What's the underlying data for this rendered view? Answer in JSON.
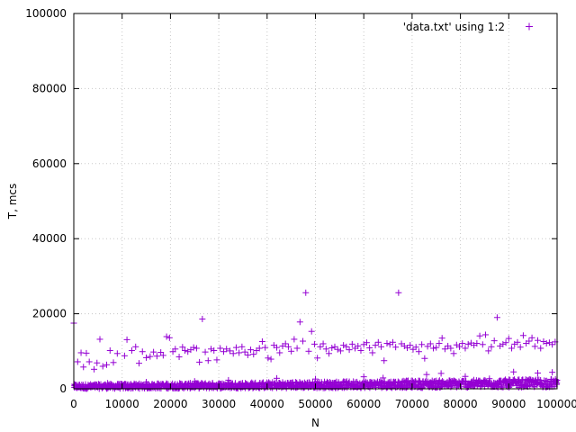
{
  "chart_data": {
    "type": "scatter",
    "title": "",
    "xlabel": "N",
    "ylabel": "T, mcs",
    "xlim": [
      0,
      100000
    ],
    "ylim": [
      0,
      100000
    ],
    "x_ticks": [
      "0",
      "10000",
      "20000",
      "30000",
      "40000",
      "50000",
      "60000",
      "70000",
      "80000",
      "90000",
      "100000"
    ],
    "y_ticks": [
      "0",
      "20000",
      "40000",
      "60000",
      "80000",
      "100000"
    ],
    "grid": true,
    "legend_position": "top-right",
    "marker": "+",
    "color": "#9400d3",
    "series": [
      {
        "name": "'data.txt' using 1:2",
        "upper_band_points": [
          [
            0,
            17500
          ],
          [
            800,
            7200
          ],
          [
            1500,
            9600
          ],
          [
            2000,
            5800
          ],
          [
            2600,
            9500
          ],
          [
            3200,
            7200
          ],
          [
            4200,
            5200
          ],
          [
            4800,
            6900
          ],
          [
            5400,
            13200
          ],
          [
            6000,
            6000
          ],
          [
            6800,
            6400
          ],
          [
            7500,
            10200
          ],
          [
            8200,
            7000
          ],
          [
            9000,
            9400
          ],
          [
            10500,
            8800
          ],
          [
            11000,
            13100
          ],
          [
            12000,
            10200
          ],
          [
            12800,
            11200
          ],
          [
            13500,
            6800
          ],
          [
            14200,
            9900
          ],
          [
            15000,
            8300
          ],
          [
            15800,
            8600
          ],
          [
            16500,
            9800
          ],
          [
            17200,
            8700
          ],
          [
            18000,
            9700
          ],
          [
            18500,
            8900
          ],
          [
            19200,
            13900
          ],
          [
            19800,
            13600
          ],
          [
            20500,
            9900
          ],
          [
            21000,
            10600
          ],
          [
            21800,
            8500
          ],
          [
            22500,
            11100
          ],
          [
            23000,
            10200
          ],
          [
            23600,
            9900
          ],
          [
            24200,
            10400
          ],
          [
            24800,
            11000
          ],
          [
            25400,
            10800
          ],
          [
            26000,
            7100
          ],
          [
            26600,
            18600
          ],
          [
            27200,
            9800
          ],
          [
            27800,
            7500
          ],
          [
            28400,
            10600
          ],
          [
            29000,
            10200
          ],
          [
            29600,
            7700
          ],
          [
            30300,
            10800
          ],
          [
            31000,
            9900
          ],
          [
            31600,
            10600
          ],
          [
            32300,
            10100
          ],
          [
            33000,
            9400
          ],
          [
            33600,
            11000
          ],
          [
            34200,
            9600
          ],
          [
            34800,
            11200
          ],
          [
            35400,
            9800
          ],
          [
            36000,
            9000
          ],
          [
            36600,
            10400
          ],
          [
            37200,
            9200
          ],
          [
            37800,
            10200
          ],
          [
            38400,
            10800
          ],
          [
            39000,
            12600
          ],
          [
            39600,
            11000
          ],
          [
            40200,
            8200
          ],
          [
            40800,
            7900
          ],
          [
            41400,
            11600
          ],
          [
            42000,
            11000
          ],
          [
            42600,
            9600
          ],
          [
            43200,
            11400
          ],
          [
            43800,
            12000
          ],
          [
            44400,
            11200
          ],
          [
            45000,
            10000
          ],
          [
            45600,
            13200
          ],
          [
            46200,
            10800
          ],
          [
            46800,
            17800
          ],
          [
            47400,
            12700
          ],
          [
            48000,
            25600
          ],
          [
            48600,
            10000
          ],
          [
            49200,
            15300
          ],
          [
            49800,
            11900
          ],
          [
            50400,
            8200
          ],
          [
            51000,
            11200
          ],
          [
            51600,
            12000
          ],
          [
            52200,
            10600
          ],
          [
            52800,
            9400
          ],
          [
            53400,
            10900
          ],
          [
            54000,
            11200
          ],
          [
            54600,
            10500
          ],
          [
            55200,
            10100
          ],
          [
            55800,
            11600
          ],
          [
            56400,
            11200
          ],
          [
            57000,
            10400
          ],
          [
            57600,
            11900
          ],
          [
            58200,
            10800
          ],
          [
            58800,
            11400
          ],
          [
            59400,
            10200
          ],
          [
            60000,
            11800
          ],
          [
            60600,
            12300
          ],
          [
            61200,
            10900
          ],
          [
            61800,
            9600
          ],
          [
            62400,
            11600
          ],
          [
            63000,
            12400
          ],
          [
            63600,
            11200
          ],
          [
            64200,
            7500
          ],
          [
            64800,
            12100
          ],
          [
            65400,
            11800
          ],
          [
            66000,
            12400
          ],
          [
            66600,
            11100
          ],
          [
            67200,
            25600
          ],
          [
            67800,
            12000
          ],
          [
            68400,
            11400
          ],
          [
            69000,
            10900
          ],
          [
            69600,
            11600
          ],
          [
            70200,
            10500
          ],
          [
            70800,
            11100
          ],
          [
            71400,
            9900
          ],
          [
            72000,
            11800
          ],
          [
            72600,
            8100
          ],
          [
            73200,
            11300
          ],
          [
            73800,
            12000
          ],
          [
            74400,
            10800
          ],
          [
            75000,
            11000
          ],
          [
            75600,
            12100
          ],
          [
            76200,
            13500
          ],
          [
            76800,
            10600
          ],
          [
            77400,
            11400
          ],
          [
            78000,
            10800
          ],
          [
            78600,
            9400
          ],
          [
            79200,
            11700
          ],
          [
            79800,
            11200
          ],
          [
            80400,
            12100
          ],
          [
            81000,
            10800
          ],
          [
            81600,
            11900
          ],
          [
            82200,
            12200
          ],
          [
            82800,
            11600
          ],
          [
            83400,
            12100
          ],
          [
            84000,
            14100
          ],
          [
            84600,
            11800
          ],
          [
            85200,
            14400
          ],
          [
            85800,
            10100
          ],
          [
            86400,
            11200
          ],
          [
            87000,
            12800
          ],
          [
            87600,
            19000
          ],
          [
            88200,
            11400
          ],
          [
            88800,
            11900
          ],
          [
            89400,
            12300
          ],
          [
            90000,
            13400
          ],
          [
            90600,
            10800
          ],
          [
            91200,
            11900
          ],
          [
            91800,
            12400
          ],
          [
            92400,
            11100
          ],
          [
            93000,
            14200
          ],
          [
            93600,
            12100
          ],
          [
            94200,
            12700
          ],
          [
            94800,
            13600
          ],
          [
            95400,
            11300
          ],
          [
            96000,
            12900
          ],
          [
            96600,
            10800
          ],
          [
            97200,
            12600
          ],
          [
            97800,
            12100
          ],
          [
            98400,
            12300
          ],
          [
            99000,
            11800
          ],
          [
            99600,
            12500
          ]
        ],
        "lower_band": {
          "description_free_values": true,
          "x_start": 0,
          "x_end": 100000,
          "y_start_min": 0,
          "y_start_max": 1200,
          "y_end_min": 400,
          "y_end_max": 2600
        },
        "lower_outliers": [
          [
            7000,
            1500
          ],
          [
            15000,
            1800
          ],
          [
            25000,
            2000
          ],
          [
            32000,
            2300
          ],
          [
            42000,
            2800
          ],
          [
            50000,
            2600
          ],
          [
            60000,
            3200
          ],
          [
            64000,
            2900
          ],
          [
            73000,
            3800
          ],
          [
            76000,
            4100
          ],
          [
            81000,
            3300
          ],
          [
            86000,
            2700
          ],
          [
            91000,
            4500
          ],
          [
            96000,
            4200
          ],
          [
            99000,
            4400
          ]
        ]
      }
    ]
  }
}
